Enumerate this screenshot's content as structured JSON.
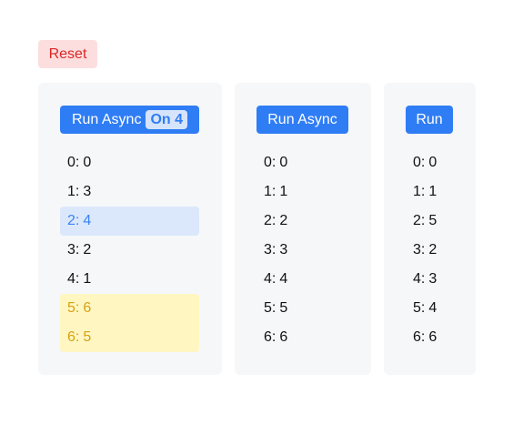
{
  "colors": {
    "reset_bg": "#fddede",
    "reset_text": "#dc2626",
    "button_bg": "#2f7df5",
    "badge_bg": "#d6e4fb",
    "badge_text": "#2f7df5",
    "panel_bg": "#f6f7f9",
    "highlight_blue_text": "#3b82f6",
    "highlight_yellow_text": "#d4a311"
  },
  "reset_button": {
    "label": "Reset"
  },
  "panels": [
    {
      "button_label": "Run Async",
      "button_badge": "On 4",
      "rows": [
        {
          "key": "0:",
          "value": "0"
        },
        {
          "key": "1:",
          "value": "3"
        },
        {
          "key": "2:",
          "value": "4",
          "highlight": "blue"
        },
        {
          "key": "3:",
          "value": "2"
        },
        {
          "key": "4:",
          "value": "1"
        },
        {
          "key": "5:",
          "value": "6",
          "highlight": "yellow"
        },
        {
          "key": "6:",
          "value": "5",
          "highlight": "yellow"
        }
      ]
    },
    {
      "button_label": "Run Async",
      "rows": [
        {
          "key": "0:",
          "value": "0"
        },
        {
          "key": "1:",
          "value": "1"
        },
        {
          "key": "2:",
          "value": "2"
        },
        {
          "key": "3:",
          "value": "3"
        },
        {
          "key": "4:",
          "value": "4"
        },
        {
          "key": "5:",
          "value": "5"
        },
        {
          "key": "6:",
          "value": "6"
        }
      ]
    },
    {
      "button_label": "Run",
      "rows": [
        {
          "key": "0:",
          "value": "0"
        },
        {
          "key": "1:",
          "value": "1"
        },
        {
          "key": "2:",
          "value": "5"
        },
        {
          "key": "3:",
          "value": "2"
        },
        {
          "key": "4:",
          "value": "3"
        },
        {
          "key": "5:",
          "value": "4"
        },
        {
          "key": "6:",
          "value": "6"
        }
      ]
    }
  ]
}
